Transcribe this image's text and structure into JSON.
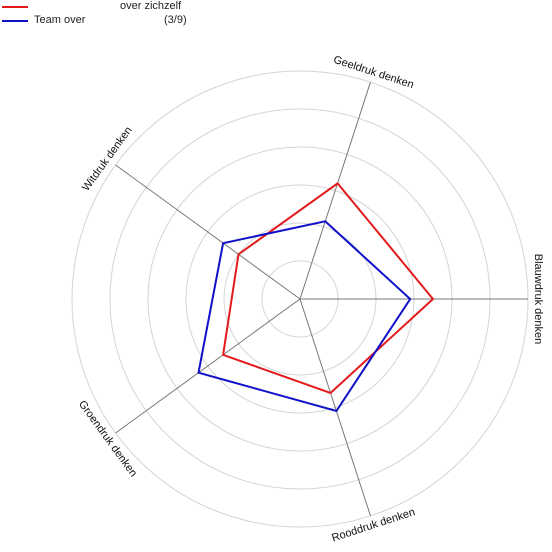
{
  "legend": {
    "series1_label": "",
    "series1_note": "over zichzelf",
    "series2_label": "Team over",
    "series2_note": "(3/9)"
  },
  "chart_data": {
    "type": "radar",
    "title": "",
    "axes": [
      "Geeldruk denken",
      "Blauwdruk denken",
      "Rooddruk denken",
      "Groendruk denken",
      "Witdruk denken"
    ],
    "rmax": 5,
    "rings": [
      1,
      2,
      3,
      4,
      5
    ],
    "grid": true,
    "legend_position": "top-left",
    "series": [
      {
        "name": "over zichzelf",
        "color": "#e31a1c",
        "values": [
          3.2,
          3.5,
          2.6,
          2.5,
          2.0
        ]
      },
      {
        "name": "Team over",
        "color": "#1010c8",
        "values": [
          2.15,
          2.9,
          3.1,
          3.3,
          2.5
        ]
      }
    ]
  }
}
